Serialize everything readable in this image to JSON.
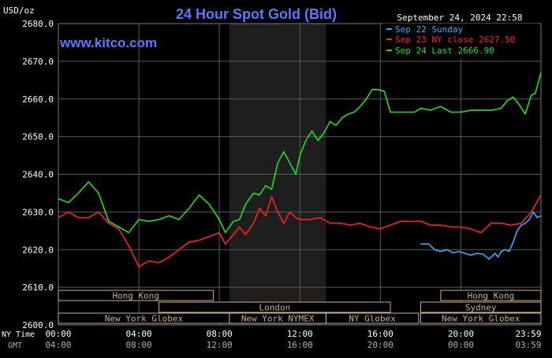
{
  "chart_data": {
    "type": "line",
    "title": "24 Hour Spot Gold (Bid)",
    "watermark": "www.kitco.com",
    "ylabel": "USD/oz",
    "timestamp": "September 24, 2024 22:58",
    "ylim": [
      2600,
      2680
    ],
    "yticks": [
      "2680.0",
      "2670.0",
      "2660.0",
      "2650.0",
      "2640.0",
      "2630.0",
      "2620.0",
      "2610.0",
      "2600.0"
    ],
    "xticks_ny": [
      "00:00",
      "04:00",
      "08:00",
      "12:00",
      "16:00",
      "20:00",
      "23:59"
    ],
    "xticks_gmt": [
      "04:00",
      "08:00",
      "12:00",
      "16:00",
      "20:00",
      "00:00",
      "03:59"
    ],
    "xlabel_ny": "NY Time",
    "xlabel_gmt": "GMT",
    "grid": true,
    "legend_position": "top-right",
    "colors": {
      "background": "#000000",
      "grid": "#5a5a5a",
      "title": "#5b79ff",
      "axis_text": "#ffffff",
      "sunday": "#27b4ff",
      "ny_close": "#ff2020",
      "last": "#20e020",
      "shade": "#1e1e1e",
      "session": "#c8b38a"
    },
    "series": [
      {
        "name": "Sep 22 Sunday",
        "color": "#27b4ff",
        "x": [
          18.0,
          18.4,
          18.7,
          19.0,
          19.3,
          19.6,
          19.9,
          20.2,
          20.5,
          20.8,
          21.1,
          21.4,
          21.7,
          21.85,
          22.0,
          22.2,
          22.4,
          22.6,
          22.8,
          23.0,
          23.2,
          23.4,
          23.6,
          23.8,
          23.98
        ],
        "y": [
          2621.5,
          2621.5,
          2620.0,
          2619.5,
          2620.0,
          2619.2,
          2619.5,
          2619.0,
          2618.5,
          2619.0,
          2618.8,
          2617.5,
          2619.0,
          2618.0,
          2619.5,
          2620.0,
          2619.5,
          2622.0,
          2625.0,
          2626.5,
          2627.0,
          2628.0,
          2630.0,
          2628.5,
          2629.0
        ]
      },
      {
        "name": "Sep 23 NY close 2627.50",
        "color": "#ff2020",
        "x": [
          0,
          0.5,
          1.0,
          1.5,
          2.0,
          2.5,
          3.0,
          3.5,
          4.0,
          4.5,
          5.0,
          5.5,
          6.0,
          6.5,
          7.0,
          7.5,
          8.0,
          8.3,
          8.7,
          9.0,
          9.3,
          9.7,
          10.0,
          10.3,
          10.6,
          10.9,
          11.2,
          11.5,
          11.8,
          12.0,
          12.5,
          13.0,
          13.5,
          14.0,
          14.5,
          15.0,
          15.5,
          16.0,
          16.5,
          17.0,
          17.5,
          18.0,
          18.5,
          19.0,
          19.5,
          20.0,
          20.5,
          21.0,
          21.5,
          22.0,
          22.5,
          23.0,
          23.5,
          23.98
        ],
        "y": [
          2628.5,
          2630.0,
          2628.5,
          2628.5,
          2630.0,
          2627.0,
          2625.5,
          2621.0,
          2615.5,
          2617.0,
          2616.5,
          2618.0,
          2620.0,
          2622.0,
          2622.5,
          2623.5,
          2624.5,
          2621.5,
          2624.0,
          2626.0,
          2624.0,
          2627.0,
          2631.0,
          2629.0,
          2634.0,
          2630.0,
          2627.0,
          2630.0,
          2628.5,
          2628.0,
          2628.0,
          2628.5,
          2627.0,
          2627.0,
          2626.5,
          2627.0,
          2626.0,
          2625.5,
          2626.5,
          2627.5,
          2627.5,
          2627.5,
          2626.5,
          2626.5,
          2626.0,
          2626.0,
          2625.5,
          2624.5,
          2627.0,
          2627.0,
          2626.5,
          2627.0,
          2630.0,
          2634.5
        ]
      },
      {
        "name": "Sep 24 Last 2666.90",
        "color": "#20e020",
        "x": [
          0,
          0.5,
          1.0,
          1.5,
          2.0,
          2.5,
          3.0,
          3.5,
          4.0,
          4.5,
          5.0,
          5.5,
          6.0,
          6.5,
          7.0,
          7.5,
          8.0,
          8.3,
          8.7,
          9.0,
          9.3,
          9.7,
          10.0,
          10.3,
          10.6,
          10.9,
          11.2,
          11.5,
          11.8,
          12.0,
          12.3,
          12.6,
          12.9,
          13.2,
          13.5,
          13.8,
          14.1,
          14.4,
          14.7,
          15.0,
          15.3,
          15.6,
          15.9,
          16.2,
          16.5,
          16.8,
          17.1,
          17.4,
          17.7,
          18.0,
          18.5,
          19.0,
          19.5,
          20.0,
          20.5,
          21.0,
          21.5,
          22.0,
          22.3,
          22.6,
          22.9,
          23.2,
          23.5,
          23.7,
          23.98
        ],
        "y": [
          2633.5,
          2632.5,
          2635.0,
          2638.0,
          2635.0,
          2627.5,
          2626.0,
          2624.5,
          2628.0,
          2627.5,
          2628.0,
          2629.0,
          2628.0,
          2631.0,
          2634.5,
          2632.0,
          2628.0,
          2624.5,
          2627.5,
          2628.0,
          2632.0,
          2635.0,
          2634.5,
          2637.0,
          2636.0,
          2643.0,
          2646.0,
          2643.0,
          2640.0,
          2645.0,
          2649.0,
          2651.5,
          2649.0,
          2651.0,
          2654.0,
          2653.0,
          2655.0,
          2656.0,
          2656.5,
          2658.0,
          2660.0,
          2662.5,
          2662.5,
          2662.0,
          2656.5,
          2656.5,
          2656.5,
          2656.5,
          2656.5,
          2657.5,
          2657.0,
          2658.0,
          2656.5,
          2656.5,
          2657.0,
          2657.0,
          2657.0,
          2657.5,
          2659.5,
          2660.5,
          2658.5,
          2656.0,
          2661.0,
          2661.5,
          2667.0
        ]
      }
    ],
    "shaded_region": {
      "from_hour": 8.5,
      "to_hour": 13.3
    },
    "sessions": [
      {
        "label": "Hong Kong",
        "from": 0.0,
        "to": 7.7,
        "row": 1
      },
      {
        "label": "London",
        "from": 5.0,
        "to": 16.5,
        "row": 2
      },
      {
        "label": "New York Globex",
        "from": 0.0,
        "to": 8.5,
        "row": 3
      },
      {
        "label": "New York NYMEX",
        "from": 8.5,
        "to": 13.3,
        "row": 3
      },
      {
        "label": "NY Globex",
        "from": 13.3,
        "to": 17.9,
        "row": 3
      },
      {
        "label": "Hong Kong",
        "from": 19.0,
        "to": 23.98,
        "row": 1
      },
      {
        "label": "Sydney",
        "from": 18.0,
        "to": 23.98,
        "row": 2
      },
      {
        "label": "New York Globex",
        "from": 18.0,
        "to": 23.98,
        "row": 3
      }
    ]
  }
}
